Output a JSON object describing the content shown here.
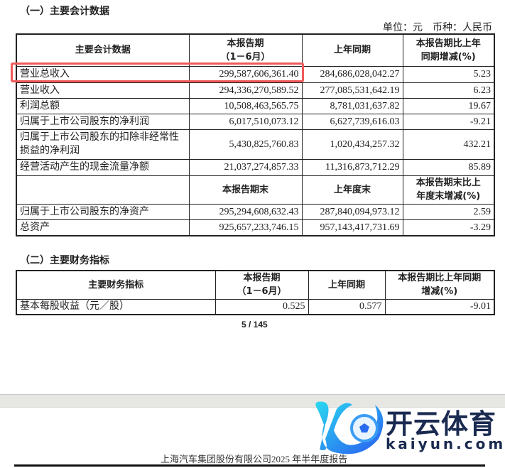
{
  "section1": {
    "title": "（一）主要会计数据",
    "unit": "单位：元　币种：人民币",
    "headers": [
      "主要会计数据",
      "本报告期",
      "（1－6月）",
      "上年同期",
      "本报告期比上年",
      "同期增减(%)"
    ],
    "rows": [
      [
        "营业总收入",
        "299,587,606,361.40",
        "284,686,028,042.27",
        "5.23"
      ],
      [
        "营业收入",
        "294,336,270,589.52",
        "277,085,531,642.19",
        "6.23"
      ],
      [
        "利润总额",
        "10,508,463,565.75",
        "8,781,031,637.82",
        "19.67"
      ],
      [
        "归属于上市公司股东的净利润",
        "6,017,510,073.12",
        "6,627,739,616.03",
        "-9.21"
      ],
      [
        "归属于上市公司股东的扣除非经常性损益的净利润",
        "5,430,825,760.83",
        "1,020,434,257.32",
        "432.21"
      ],
      [
        "经营活动产生的现金流量净额",
        "21,037,274,857.33",
        "11,316,873,712.29",
        "85.89"
      ]
    ],
    "headers2": [
      "本报告期末",
      "上年度末",
      "本报告期末比上",
      "年度末增减(%)"
    ],
    "rows2": [
      [
        "归属于上市公司股东的净资产",
        "295,294,608,632.43",
        "287,840,094,973.12",
        "2.59"
      ],
      [
        "总资产",
        "925,657,233,746.15",
        "957,143,417,731.69",
        "-3.29"
      ]
    ]
  },
  "section2": {
    "title": "（二）主要财务指标",
    "headers": [
      "主要财务指标",
      "本报告期",
      "（1－6月）",
      "上年同期",
      "本报告期比上年同期",
      "增减(%)"
    ],
    "rows": [
      [
        "基本每股收益（元／股）",
        "0.525",
        "0.577",
        "-9.01"
      ]
    ]
  },
  "page_number": "5 / 145",
  "footer": "上海汽车集团股份有限公司2025 年半年度报告",
  "watermark": {
    "text": "开云体育",
    "url_text": "kaiyun.com",
    "colors": [
      "#1ec8f0",
      "#2a5cf0",
      "#1a2a50"
    ]
  },
  "highlight_color": "#f05a5a"
}
